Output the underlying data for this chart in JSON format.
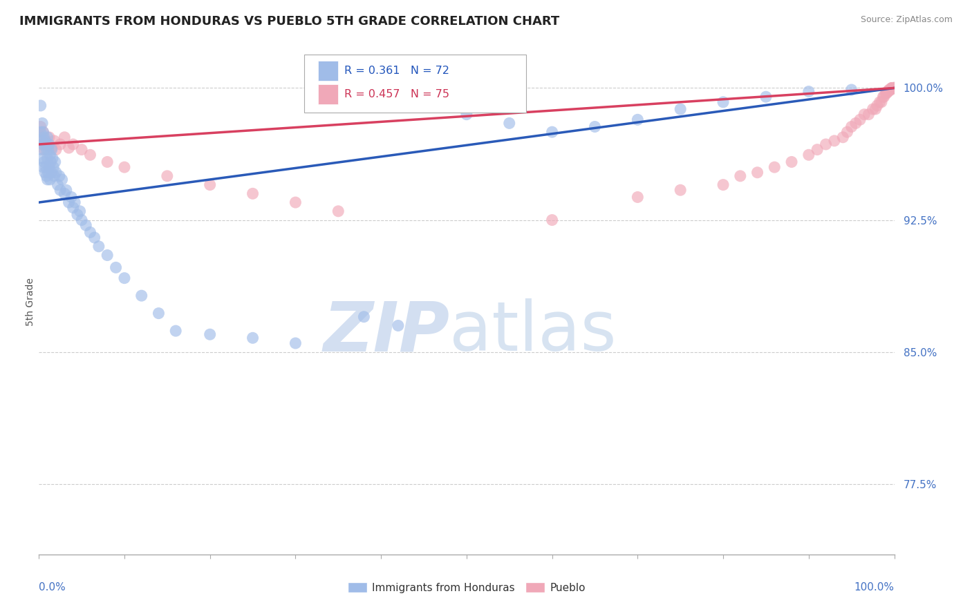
{
  "title": "IMMIGRANTS FROM HONDURAS VS PUEBLO 5TH GRADE CORRELATION CHART",
  "source": "Source: ZipAtlas.com",
  "ylabel": "5th Grade",
  "xlim": [
    0.0,
    1.0
  ],
  "ylim": [
    0.735,
    1.022
  ],
  "yticks": [
    0.775,
    0.85,
    0.925,
    1.0
  ],
  "ytick_labels": [
    "77.5%",
    "85.0%",
    "92.5%",
    "100.0%"
  ],
  "legend_labels": [
    "Immigrants from Honduras",
    "Pueblo"
  ],
  "blue_R": 0.361,
  "blue_N": 72,
  "pink_R": 0.457,
  "pink_N": 75,
  "blue_color": "#a0bce8",
  "pink_color": "#f0a8b8",
  "blue_line_color": "#2a5ab8",
  "pink_line_color": "#d84060",
  "blue_x": [
    0.002,
    0.002,
    0.003,
    0.003,
    0.004,
    0.004,
    0.005,
    0.005,
    0.005,
    0.006,
    0.006,
    0.007,
    0.007,
    0.008,
    0.008,
    0.009,
    0.009,
    0.01,
    0.01,
    0.01,
    0.011,
    0.011,
    0.012,
    0.012,
    0.013,
    0.013,
    0.014,
    0.015,
    0.015,
    0.016,
    0.017,
    0.018,
    0.019,
    0.02,
    0.022,
    0.024,
    0.025,
    0.027,
    0.03,
    0.032,
    0.035,
    0.038,
    0.04,
    0.042,
    0.045,
    0.048,
    0.05,
    0.055,
    0.06,
    0.065,
    0.07,
    0.08,
    0.09,
    0.1,
    0.12,
    0.14,
    0.16,
    0.2,
    0.25,
    0.3,
    0.38,
    0.42,
    0.5,
    0.55,
    0.6,
    0.65,
    0.7,
    0.75,
    0.8,
    0.85,
    0.9,
    0.95
  ],
  "blue_y": [
    0.99,
    0.975,
    0.97,
    0.965,
    0.98,
    0.96,
    0.975,
    0.968,
    0.955,
    0.972,
    0.958,
    0.97,
    0.952,
    0.968,
    0.955,
    0.965,
    0.95,
    0.972,
    0.96,
    0.948,
    0.965,
    0.952,
    0.968,
    0.955,
    0.962,
    0.948,
    0.958,
    0.965,
    0.952,
    0.96,
    0.955,
    0.95,
    0.958,
    0.952,
    0.945,
    0.95,
    0.942,
    0.948,
    0.94,
    0.942,
    0.935,
    0.938,
    0.932,
    0.935,
    0.928,
    0.93,
    0.925,
    0.922,
    0.918,
    0.915,
    0.91,
    0.905,
    0.898,
    0.892,
    0.882,
    0.872,
    0.862,
    0.86,
    0.858,
    0.855,
    0.87,
    0.865,
    0.985,
    0.98,
    0.975,
    0.978,
    0.982,
    0.988,
    0.992,
    0.995,
    0.998,
    0.999
  ],
  "pink_x": [
    0.002,
    0.003,
    0.004,
    0.005,
    0.006,
    0.008,
    0.01,
    0.012,
    0.015,
    0.018,
    0.02,
    0.025,
    0.03,
    0.035,
    0.04,
    0.05,
    0.06,
    0.08,
    0.1,
    0.15,
    0.2,
    0.25,
    0.3,
    0.35,
    0.6,
    0.7,
    0.75,
    0.8,
    0.82,
    0.84,
    0.86,
    0.88,
    0.9,
    0.91,
    0.92,
    0.93,
    0.94,
    0.945,
    0.95,
    0.955,
    0.96,
    0.965,
    0.97,
    0.975,
    0.978,
    0.98,
    0.983,
    0.985,
    0.987,
    0.988,
    0.99,
    0.991,
    0.992,
    0.993,
    0.994,
    0.995,
    0.996,
    0.997,
    0.997,
    0.998,
    0.998,
    0.999,
    0.999,
    0.999,
    1.0,
    1.0,
    1.0,
    1.0,
    1.0,
    1.0,
    1.0,
    1.0,
    1.0,
    1.0,
    1.0
  ],
  "pink_y": [
    0.978,
    0.972,
    0.968,
    0.975,
    0.965,
    0.97,
    0.968,
    0.972,
    0.966,
    0.97,
    0.965,
    0.968,
    0.972,
    0.966,
    0.968,
    0.965,
    0.962,
    0.958,
    0.955,
    0.95,
    0.945,
    0.94,
    0.935,
    0.93,
    0.925,
    0.938,
    0.942,
    0.945,
    0.95,
    0.952,
    0.955,
    0.958,
    0.962,
    0.965,
    0.968,
    0.97,
    0.972,
    0.975,
    0.978,
    0.98,
    0.982,
    0.985,
    0.985,
    0.988,
    0.988,
    0.99,
    0.992,
    0.992,
    0.995,
    0.995,
    0.997,
    0.997,
    0.998,
    0.998,
    0.999,
    0.999,
    0.999,
    1.0,
    1.0,
    1.0,
    1.0,
    1.0,
    1.0,
    1.0,
    1.0,
    1.0,
    1.0,
    1.0,
    1.0,
    1.0,
    1.0,
    1.0,
    1.0,
    1.0,
    1.0
  ],
  "blue_line_x": [
    0.0,
    1.0
  ],
  "blue_line_y": [
    0.935,
    1.0
  ],
  "pink_line_x": [
    0.0,
    1.0
  ],
  "pink_line_y": [
    0.968,
    1.0
  ],
  "watermark_zip": "ZIP",
  "watermark_atlas": "atlas"
}
